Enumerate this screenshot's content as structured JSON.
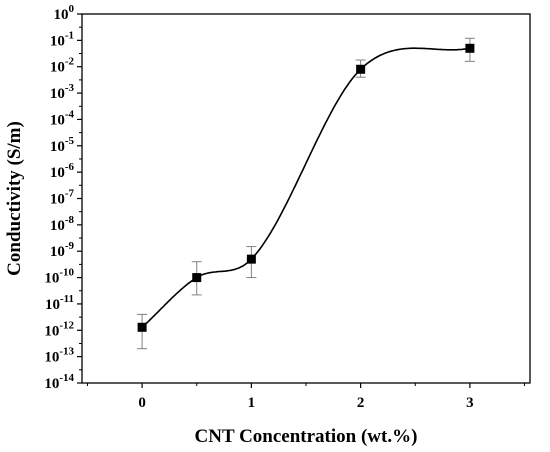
{
  "chart_data": {
    "type": "scatter",
    "xlabel": "CNT Concentration (wt.%)",
    "ylabel": "Conductivity (S/m)",
    "xlim": [
      -0.55,
      3.55
    ],
    "ylim": [
      1e-14,
      1
    ],
    "y_scale": "log",
    "grid": false,
    "legend": "none",
    "x_ticks": [
      0,
      1,
      2,
      3
    ],
    "x_tick_labels": [
      "0",
      "1",
      "2",
      "3"
    ],
    "y_tick_exponents": [
      0,
      -1,
      -2,
      -3,
      -4,
      -5,
      -6,
      -7,
      -8,
      -9,
      -10,
      -11,
      -12,
      -13,
      -14
    ],
    "y_tick_base": "10",
    "y_tick_labels": [
      "10^0",
      "10^-1",
      "10^-2",
      "10^-3",
      "10^-4",
      "10^-5",
      "10^-6",
      "10^-7",
      "10^-8",
      "10^-9",
      "10^-10",
      "10^-11",
      "10^-12",
      "10^-13",
      "10^-14"
    ],
    "x": [
      0,
      0.5,
      1,
      2,
      3
    ],
    "y": [
      1.3e-12,
      1e-10,
      5e-10,
      0.008,
      0.05
    ],
    "y_err_low": [
      2e-13,
      2.2e-11,
      1e-10,
      0.004,
      0.016
    ],
    "y_err_high": [
      4e-12,
      4e-10,
      1.5e-09,
      0.018,
      0.12
    ],
    "marker": "square",
    "marker_color": "#000000",
    "line_color": "#000000",
    "errorbar_color": "#808080"
  }
}
